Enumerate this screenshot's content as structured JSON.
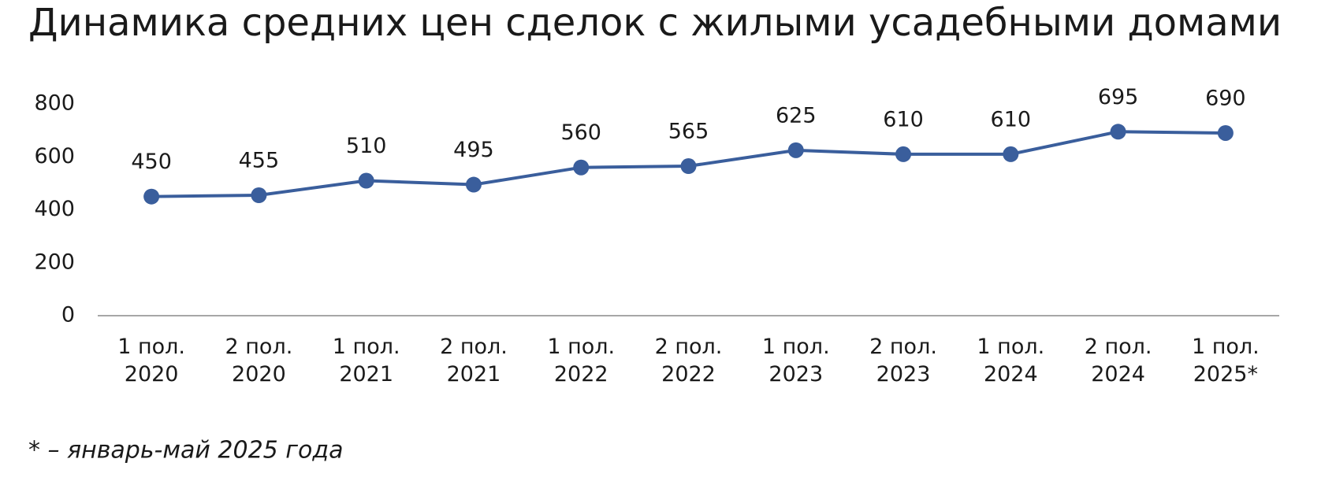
{
  "chart_data": {
    "type": "line",
    "title": "Динамика средних цен сделок с жилыми усадебными домами",
    "categories": [
      [
        "1 пол.",
        "2020"
      ],
      [
        "2 пол.",
        "2020"
      ],
      [
        "1 пол.",
        "2021"
      ],
      [
        "2 пол.",
        "2021"
      ],
      [
        "1 пол.",
        "2022"
      ],
      [
        "2 пол.",
        "2022"
      ],
      [
        "1 пол.",
        "2023"
      ],
      [
        "2 пол.",
        "2023"
      ],
      [
        "1 пол.",
        "2024"
      ],
      [
        "2 пол.",
        "2024"
      ],
      [
        "1 пол.",
        "2025*"
      ]
    ],
    "series": [
      {
        "color": "#3a5e9c",
        "values": [
          450,
          455,
          510,
          495,
          560,
          565,
          625,
          610,
          610,
          695,
          690
        ]
      }
    ],
    "ylim": [
      0,
      800
    ],
    "yticks": [
      0,
      200,
      400,
      600,
      800
    ],
    "grid": false,
    "note": "* – январь-май 2025 года"
  }
}
